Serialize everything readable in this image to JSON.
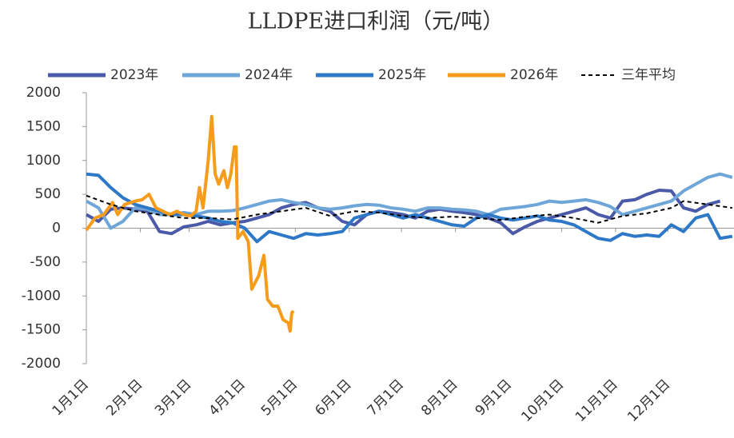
{
  "chart_data": {
    "type": "line",
    "title": "LLDPE进口利润（元/吨）",
    "xlim": [
      0,
      372
    ],
    "xticks": [
      {
        "value": 0,
        "label": "1月1日"
      },
      {
        "value": 31,
        "label": "2月1日"
      },
      {
        "value": 59,
        "label": "3月1日"
      },
      {
        "value": 90,
        "label": "4月1日"
      },
      {
        "value": 120,
        "label": "5月1日"
      },
      {
        "value": 151,
        "label": "6月1日"
      },
      {
        "value": 181,
        "label": "7月1日"
      },
      {
        "value": 212,
        "label": "8月1日"
      },
      {
        "value": 243,
        "label": "9月1日"
      },
      {
        "value": 273,
        "label": "10月1日"
      },
      {
        "value": 304,
        "label": "11月1日"
      },
      {
        "value": 334,
        "label": "12月1日"
      }
    ],
    "ylim": [
      -2000,
      2000
    ],
    "yticks": [
      2000,
      1500,
      1000,
      500,
      0,
      -500,
      -1000,
      -1500,
      -2000
    ],
    "series": [
      {
        "name": "2023年",
        "color": "#4a5aa8",
        "linestyle": "solid",
        "x": [
          0,
          7,
          14,
          21,
          28,
          35,
          42,
          49,
          56,
          63,
          70,
          77,
          84,
          91,
          98,
          105,
          112,
          119,
          126,
          133,
          140,
          147,
          154,
          161,
          168,
          175,
          182,
          189,
          196,
          203,
          210,
          217,
          224,
          231,
          238,
          245,
          252,
          259,
          266,
          273,
          280,
          287,
          294,
          301,
          308,
          315,
          322,
          329,
          336,
          343,
          350,
          357,
          364
        ],
        "values": [
          200,
          100,
          280,
          300,
          280,
          250,
          -50,
          -80,
          20,
          50,
          100,
          50,
          80,
          100,
          150,
          200,
          300,
          350,
          380,
          300,
          250,
          100,
          50,
          200,
          250,
          230,
          200,
          150,
          250,
          280,
          250,
          230,
          200,
          150,
          80,
          -80,
          20,
          100,
          150,
          200,
          250,
          300,
          200,
          150,
          400,
          420,
          500,
          560,
          550,
          300,
          250,
          350,
          400
        ]
      },
      {
        "name": "2024年",
        "color": "#6fa6d8",
        "linestyle": "solid",
        "x": [
          0,
          7,
          14,
          21,
          28,
          35,
          42,
          49,
          56,
          63,
          70,
          77,
          84,
          91,
          98,
          105,
          112,
          119,
          126,
          133,
          140,
          147,
          154,
          161,
          168,
          175,
          182,
          189,
          196,
          203,
          210,
          217,
          224,
          231,
          238,
          245,
          252,
          259,
          266,
          273,
          280,
          287,
          294,
          301,
          308,
          315,
          322,
          329,
          336,
          343,
          350,
          357,
          364,
          371
        ],
        "values": [
          400,
          300,
          0,
          100,
          300,
          280,
          200,
          200,
          230,
          200,
          250,
          250,
          260,
          300,
          350,
          400,
          420,
          380,
          350,
          300,
          280,
          300,
          330,
          350,
          340,
          300,
          280,
          250,
          300,
          300,
          280,
          270,
          250,
          200,
          280,
          300,
          320,
          350,
          400,
          380,
          400,
          420,
          380,
          320,
          200,
          250,
          300,
          350,
          400,
          550,
          650,
          750,
          800,
          750
        ]
      },
      {
        "name": "2025年",
        "color": "#2e78c8",
        "linestyle": "solid",
        "x": [
          0,
          7,
          14,
          21,
          28,
          35,
          42,
          49,
          56,
          63,
          70,
          77,
          84,
          91,
          98,
          105,
          112,
          119,
          126,
          133,
          140,
          147,
          154,
          161,
          168,
          175,
          182,
          189,
          196,
          203,
          210,
          217,
          224,
          231,
          238,
          245,
          252,
          259,
          266,
          273,
          280,
          287,
          294,
          301,
          308,
          315,
          322,
          329,
          336,
          343,
          350,
          357,
          364,
          371
        ],
        "values": [
          800,
          780,
          600,
          450,
          350,
          300,
          250,
          200,
          200,
          180,
          150,
          100,
          80,
          0,
          -200,
          -50,
          -100,
          -150,
          -80,
          -100,
          -80,
          -50,
          150,
          200,
          250,
          200,
          150,
          200,
          150,
          100,
          50,
          30,
          150,
          200,
          150,
          120,
          150,
          180,
          120,
          100,
          50,
          -50,
          -150,
          -180,
          -80,
          -120,
          -100,
          -120,
          50,
          -50,
          150,
          200,
          -150,
          -120
        ]
      },
      {
        "name": "2026年",
        "color": "#f59c1a",
        "linestyle": "solid",
        "x": [
          0,
          5,
          10,
          15,
          18,
          22,
          28,
          32,
          36,
          40,
          44,
          48,
          52,
          56,
          60,
          63,
          65,
          67,
          70,
          72,
          74,
          76,
          79,
          81,
          83,
          85,
          86,
          87,
          90,
          93,
          95,
          99,
          102,
          104,
          107,
          110,
          113,
          116,
          117,
          118,
          119
        ],
        "values": [
          -30,
          150,
          200,
          380,
          200,
          350,
          400,
          420,
          500,
          300,
          250,
          200,
          250,
          200,
          180,
          250,
          600,
          300,
          1000,
          1650,
          800,
          650,
          850,
          600,
          800,
          1200,
          1200,
          -150,
          -50,
          -200,
          -900,
          -700,
          -400,
          -1050,
          -1150,
          -1150,
          -1350,
          -1400,
          -1520,
          -1250,
          -1220
        ]
      },
      {
        "name": "三年平均",
        "color": "#000000",
        "linestyle": "dashed",
        "x": [
          0,
          14,
          28,
          42,
          56,
          70,
          84,
          98,
          112,
          126,
          140,
          154,
          168,
          182,
          196,
          210,
          224,
          238,
          252,
          266,
          280,
          294,
          308,
          322,
          336,
          343,
          357,
          371
        ],
        "values": [
          480,
          350,
          250,
          200,
          150,
          150,
          130,
          200,
          250,
          300,
          180,
          250,
          230,
          180,
          150,
          170,
          150,
          120,
          170,
          200,
          150,
          80,
          180,
          220,
          300,
          400,
          350,
          300
        ]
      }
    ]
  }
}
